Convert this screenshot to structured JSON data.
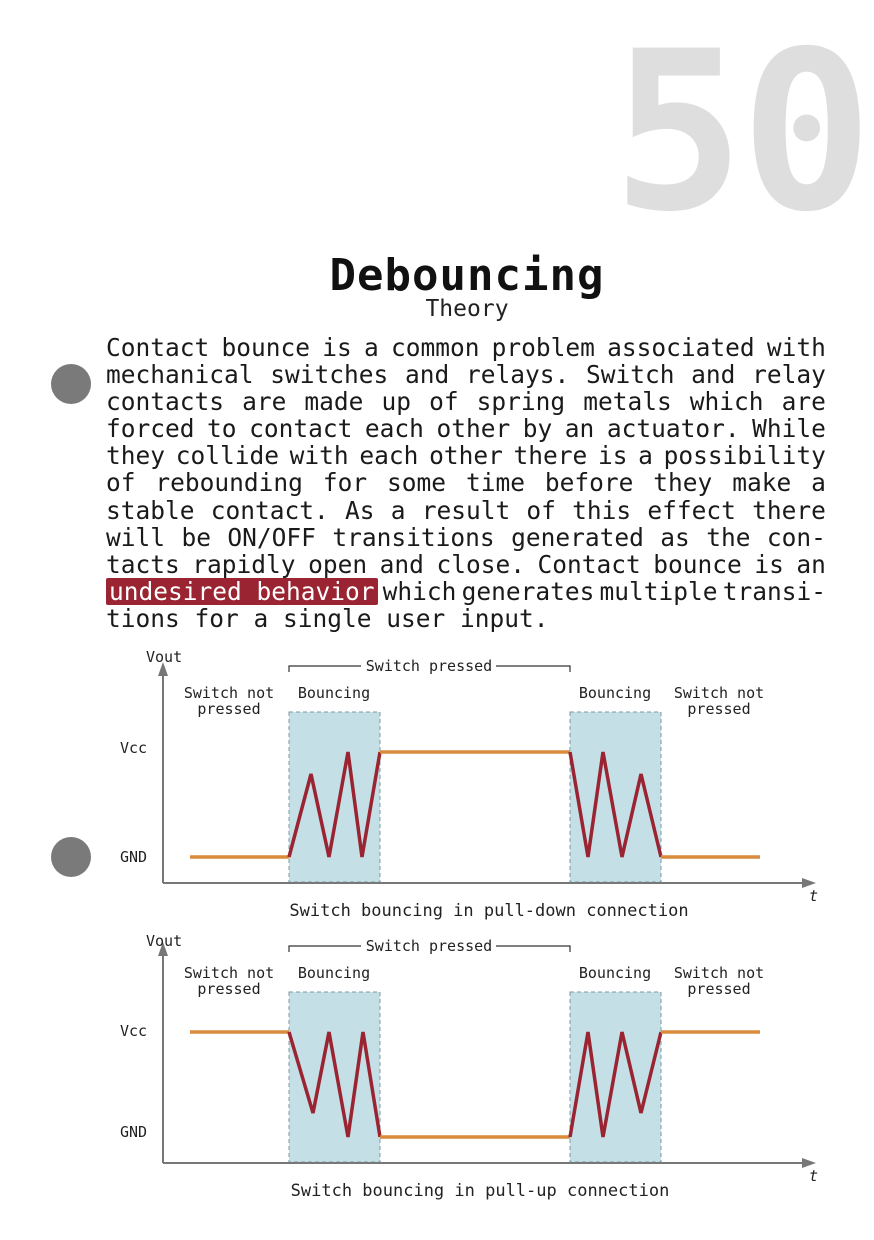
{
  "page_number": "50",
  "title": "Debouncing",
  "subtitle": "Theory",
  "paragraph": {
    "lines": [
      "Contact bounce is a common problem associated with",
      "mechanical switches and relays. Switch and relay",
      "contacts are made up of spring metals which are",
      "forced to contact each other by an actuator. While",
      "they collide with each other there is a possibility",
      "of rebounding for some time before they make a",
      "stable contact. As a result of this effect there",
      "will be ON/OFF transitions generated as the con-",
      "tacts rapidly open and close. Contact bounce is an"
    ],
    "highlight": "undesired behavior",
    "after_highlight": "which generates multiple transi-",
    "last_line": "tions for a single user input."
  },
  "diagrams": [
    {
      "caption": "Switch bouncing in pull-down connection",
      "y_axis": "Vout",
      "x_axis": "t",
      "vcc_label": "Vcc",
      "gnd_label": "GND",
      "bracket_label": "Switch pressed",
      "regions": {
        "not_pressed_left": [
          "Switch not",
          "pressed"
        ],
        "bouncing_left": "Bouncing",
        "bouncing_right": "Bouncing",
        "not_pressed_right": [
          "Switch not",
          "pressed"
        ]
      }
    },
    {
      "caption": "Switch bouncing in pull-up connection",
      "y_axis": "Vout",
      "x_axis": "t",
      "vcc_label": "Vcc",
      "gnd_label": "GND",
      "bracket_label": "Switch pressed",
      "regions": {
        "not_pressed_left": [
          "Switch not",
          "pressed"
        ],
        "bouncing_left": "Bouncing",
        "bouncing_right": "Bouncing",
        "not_pressed_right": [
          "Switch not",
          "pressed"
        ]
      }
    }
  ],
  "colors": {
    "steady_signal": "#d98a3a",
    "bounce_signal": "#9a2431",
    "bounce_region": "#c5dfe6",
    "highlight": "#9a2431",
    "bullet": "#7a7a7a",
    "page_number": "#dedede"
  }
}
